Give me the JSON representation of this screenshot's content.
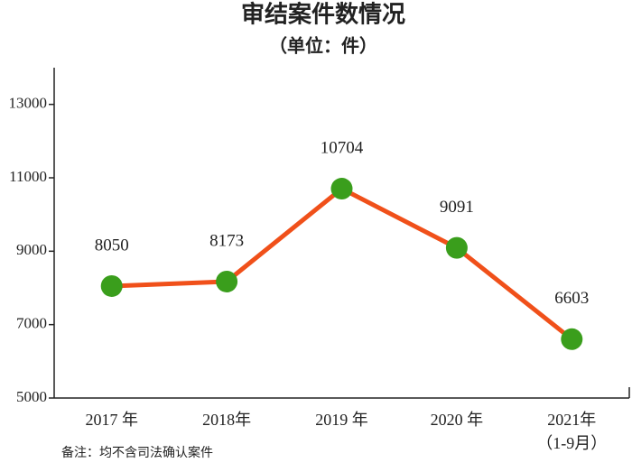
{
  "chart_data": {
    "type": "line",
    "title": "审结案件数情况",
    "subtitle": "（单位：件）",
    "categories": [
      "2017 年",
      "2018年",
      "2019 年",
      "2020 年",
      "2021年"
    ],
    "category_notes": [
      null,
      null,
      null,
      null,
      "（1-9月）"
    ],
    "series": [
      {
        "name": "审结案件数",
        "color": "#f0501a",
        "marker_color": "#3a9e1c",
        "values": [
          8050,
          8173,
          10704,
          9091,
          6603
        ]
      }
    ],
    "ylim": [
      5000,
      14000
    ],
    "yticks": [
      5000,
      7000,
      9000,
      11000,
      13000
    ],
    "note": "备注：均不含司法确认案件"
  }
}
